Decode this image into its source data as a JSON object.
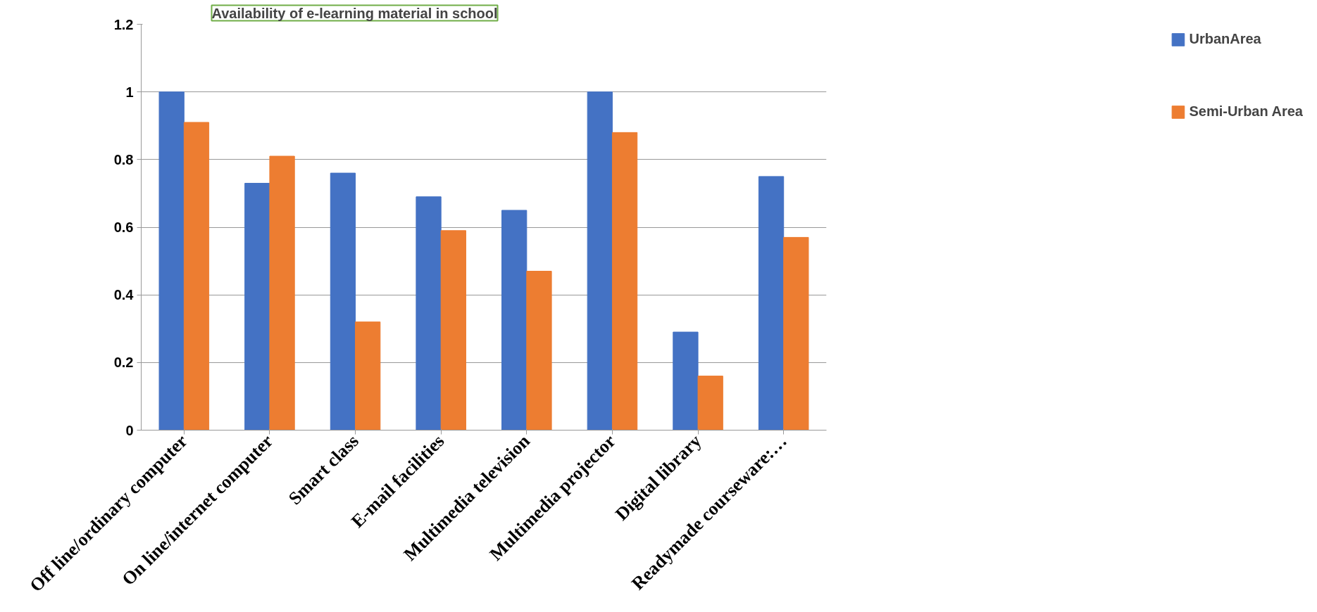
{
  "chart_data": {
    "type": "bar",
    "title": "Availability of e-learning material in school",
    "categories": [
      "Off line/ordinary computer",
      "On line/internet computer",
      "Smart class",
      "E-mail facilities",
      "Multimedia television",
      "Multimedia projector",
      "Digital library",
      "Readymade courseware:…"
    ],
    "series": [
      {
        "name": "UrbanArea",
        "color": "#4472c4",
        "values": [
          1.0,
          0.73,
          0.76,
          0.69,
          0.65,
          1.0,
          0.29,
          0.75
        ]
      },
      {
        "name": "Semi-Urban Area",
        "color": "#ed7d31",
        "values": [
          0.91,
          0.81,
          0.32,
          0.59,
          0.47,
          0.88,
          0.16,
          0.57
        ]
      }
    ],
    "ylim": [
      0,
      1.2
    ],
    "yticks": [
      0,
      0.2,
      0.4,
      0.6,
      0.8,
      1,
      1.2
    ],
    "grid": "y",
    "legend": "right"
  }
}
